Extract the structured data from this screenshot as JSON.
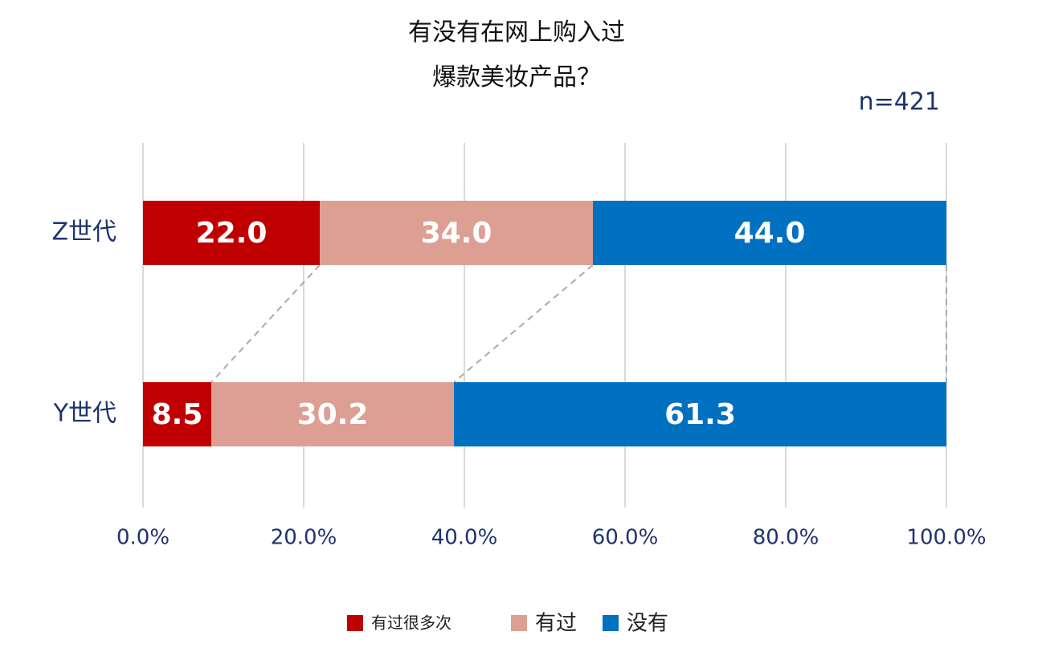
{
  "chart_data": {
    "type": "stacked-bar-horizontal",
    "title": [
      "有没有在网上购入过",
      "爆款美妆产品？"
    ],
    "annotation": "n=421",
    "categories": [
      "Z世代",
      "Y世代"
    ],
    "series": [
      {
        "name": "有过很多次",
        "color": "#c00000",
        "values": [
          22.0,
          8.5
        ],
        "value_labels": [
          "22.0",
          "8.5"
        ]
      },
      {
        "name": "有过",
        "color": "#dd9e94",
        "values": [
          34.0,
          30.2
        ],
        "value_labels": [
          "34.0",
          "30.2"
        ]
      },
      {
        "name": "没有",
        "color": "#0070c0",
        "values": [
          44.0,
          61.3
        ],
        "value_labels": [
          "44.0",
          "61.3"
        ]
      }
    ],
    "xlim": [
      0,
      100
    ],
    "xticks": [
      {
        "value": 0,
        "label": "0.0%"
      },
      {
        "value": 20,
        "label": "20.0%"
      },
      {
        "value": 40,
        "label": "40.0%"
      },
      {
        "value": 60,
        "label": "60.0%"
      },
      {
        "value": 80,
        "label": "80.0%"
      },
      {
        "value": 100,
        "label": "100.0%"
      }
    ],
    "grid": true
  }
}
